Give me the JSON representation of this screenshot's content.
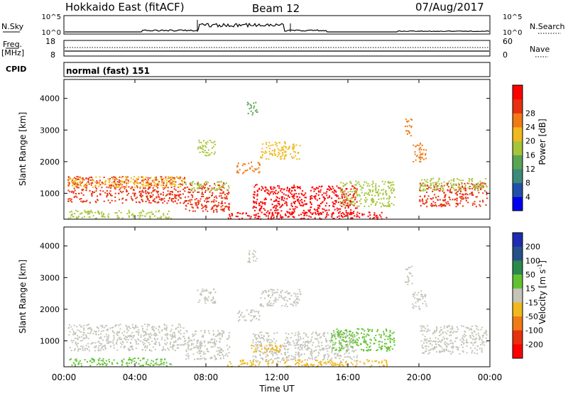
{
  "header": {
    "station": "Hokkaido East (fitACF)",
    "beam": "Beam 12",
    "date": "07/Aug/2017"
  },
  "strips": {
    "nsky_label": "N.Sky",
    "nsky_ticks": [
      "10^5",
      "10^0"
    ],
    "nsearch_label": "N.Search",
    "nsearch_ticks": [
      "10^5",
      "10^0"
    ],
    "freq_label_1": "Freq.",
    "freq_label_2": "[MHz]",
    "freq_ticks": [
      "18",
      "8"
    ],
    "nave_label": "Nave",
    "nave_ticks": [
      "60",
      "0"
    ],
    "cpid_label": "CPID",
    "cpid_value": "normal (fast) 151"
  },
  "chart_data": [
    {
      "type": "heatmap",
      "quantity": "power",
      "ylabel": "Slant Range [km]",
      "xlabel": "Time UT",
      "x_ticks": [
        "00:00",
        "04:00",
        "08:00",
        "12:00",
        "16:00",
        "20:00",
        "00:00"
      ],
      "x_range_hours": [
        0,
        24
      ],
      "y_ticks": [
        1000,
        2000,
        3000,
        4000
      ],
      "ylim": [
        180,
        4600
      ],
      "colorbar": {
        "label": "Power [dB]",
        "ticks": [
          "4",
          "8",
          "12",
          "16",
          "20",
          "24",
          "28"
        ],
        "colors": [
          "#0000ee",
          "#2050a8",
          "#3d8a78",
          "#5aa552",
          "#a6c43a",
          "#f0b81e",
          "#f07a16",
          "#e83010",
          "#ff0000"
        ]
      },
      "regions": [
        {
          "t0": 0.2,
          "t1": 6.8,
          "r0": 700,
          "r1": 1550,
          "color": "#e83010"
        },
        {
          "t0": 0.2,
          "t1": 6.8,
          "r0": 1200,
          "r1": 1550,
          "color": "#f0b81e"
        },
        {
          "t0": 0.2,
          "t1": 6.0,
          "r0": 220,
          "r1": 480,
          "color": "#a6c43a"
        },
        {
          "t0": 6.8,
          "t1": 9.3,
          "r0": 420,
          "r1": 1350,
          "color": "#e83010"
        },
        {
          "t0": 6.8,
          "t1": 9.3,
          "r0": 1100,
          "r1": 1400,
          "color": "#a6c43a"
        },
        {
          "t0": 10.6,
          "t1": 13.0,
          "r0": 350,
          "r1": 1300,
          "color": "#ff0000"
        },
        {
          "t0": 12.8,
          "t1": 16.5,
          "r0": 350,
          "r1": 1250,
          "color": "#ff0000"
        },
        {
          "t0": 9.2,
          "t1": 18.2,
          "r0": 200,
          "r1": 420,
          "color": "#ff0000"
        },
        {
          "t0": 15.5,
          "t1": 18.6,
          "r0": 600,
          "r1": 1400,
          "color": "#a6c43a"
        },
        {
          "t0": 20.0,
          "t1": 23.8,
          "r0": 600,
          "r1": 1350,
          "color": "#e83010"
        },
        {
          "t0": 20.0,
          "t1": 23.8,
          "r0": 1100,
          "r1": 1500,
          "color": "#a6c43a"
        },
        {
          "t0": 11.0,
          "t1": 13.3,
          "r0": 2100,
          "r1": 2650,
          "color": "#f0b81e"
        },
        {
          "t0": 9.7,
          "t1": 11.0,
          "r0": 1650,
          "r1": 2000,
          "color": "#f07a16"
        },
        {
          "t0": 7.5,
          "t1": 8.5,
          "r0": 2200,
          "r1": 2700,
          "color": "#a6c43a"
        },
        {
          "t0": 10.3,
          "t1": 10.9,
          "r0": 3500,
          "r1": 3900,
          "color": "#5aa552"
        },
        {
          "t0": 19.6,
          "t1": 20.4,
          "r0": 2000,
          "r1": 2600,
          "color": "#f07a16"
        },
        {
          "t0": 19.2,
          "t1": 19.6,
          "r0": 2800,
          "r1": 3400,
          "color": "#f07a16"
        }
      ]
    },
    {
      "type": "heatmap",
      "quantity": "velocity",
      "ylabel": "Slant Range [km]",
      "xlabel": "Time UT",
      "x_ticks": [
        "00:00",
        "04:00",
        "08:00",
        "12:00",
        "16:00",
        "20:00",
        "00:00"
      ],
      "x_range_hours": [
        0,
        24
      ],
      "y_ticks": [
        1000,
        2000,
        3000,
        4000
      ],
      "ylim": [
        180,
        4600
      ],
      "colorbar": {
        "label": "Velocity [m s",
        "label_sup": "-1",
        "label_end": "]",
        "ticks": [
          "200",
          "100",
          "50",
          "15",
          "-15",
          "-50",
          "-100",
          "-200"
        ],
        "colors": [
          "#1f2bb0",
          "#26508a",
          "#2a8a4c",
          "#63c232",
          "#c4c4b8",
          "#f0b81e",
          "#f07a16",
          "#e83010",
          "#ff0000"
        ]
      },
      "regions": [
        {
          "t0": 0.2,
          "t1": 6.8,
          "r0": 700,
          "r1": 1550,
          "color": "#c4c4b8"
        },
        {
          "t0": 0.2,
          "t1": 6.0,
          "r0": 220,
          "r1": 480,
          "color": "#63c232"
        },
        {
          "t0": 6.8,
          "t1": 9.3,
          "r0": 420,
          "r1": 1350,
          "color": "#c4c4b8"
        },
        {
          "t0": 10.6,
          "t1": 16.5,
          "r0": 350,
          "r1": 1300,
          "color": "#c4c4b8"
        },
        {
          "t0": 9.2,
          "t1": 18.2,
          "r0": 200,
          "r1": 420,
          "color": "#f0b81e"
        },
        {
          "t0": 10.4,
          "t1": 12.2,
          "r0": 650,
          "r1": 900,
          "color": "#f0b81e"
        },
        {
          "t0": 15.0,
          "t1": 18.6,
          "r0": 700,
          "r1": 1400,
          "color": "#63c232"
        },
        {
          "t0": 20.0,
          "t1": 23.8,
          "r0": 600,
          "r1": 1500,
          "color": "#c4c4b8"
        },
        {
          "t0": 11.0,
          "t1": 13.3,
          "r0": 2100,
          "r1": 2650,
          "color": "#c4c4b8"
        },
        {
          "t0": 9.7,
          "t1": 11.0,
          "r0": 1650,
          "r1": 2000,
          "color": "#c4c4b8"
        },
        {
          "t0": 7.5,
          "t1": 8.5,
          "r0": 2200,
          "r1": 2700,
          "color": "#c4c4b8"
        },
        {
          "t0": 10.3,
          "t1": 10.9,
          "r0": 3500,
          "r1": 3900,
          "color": "#c4c4b8"
        },
        {
          "t0": 19.6,
          "t1": 20.4,
          "r0": 2000,
          "r1": 2600,
          "color": "#c4c4b8"
        },
        {
          "t0": 19.2,
          "t1": 19.6,
          "r0": 2800,
          "r1": 3400,
          "color": "#c4c4b8"
        }
      ]
    }
  ]
}
